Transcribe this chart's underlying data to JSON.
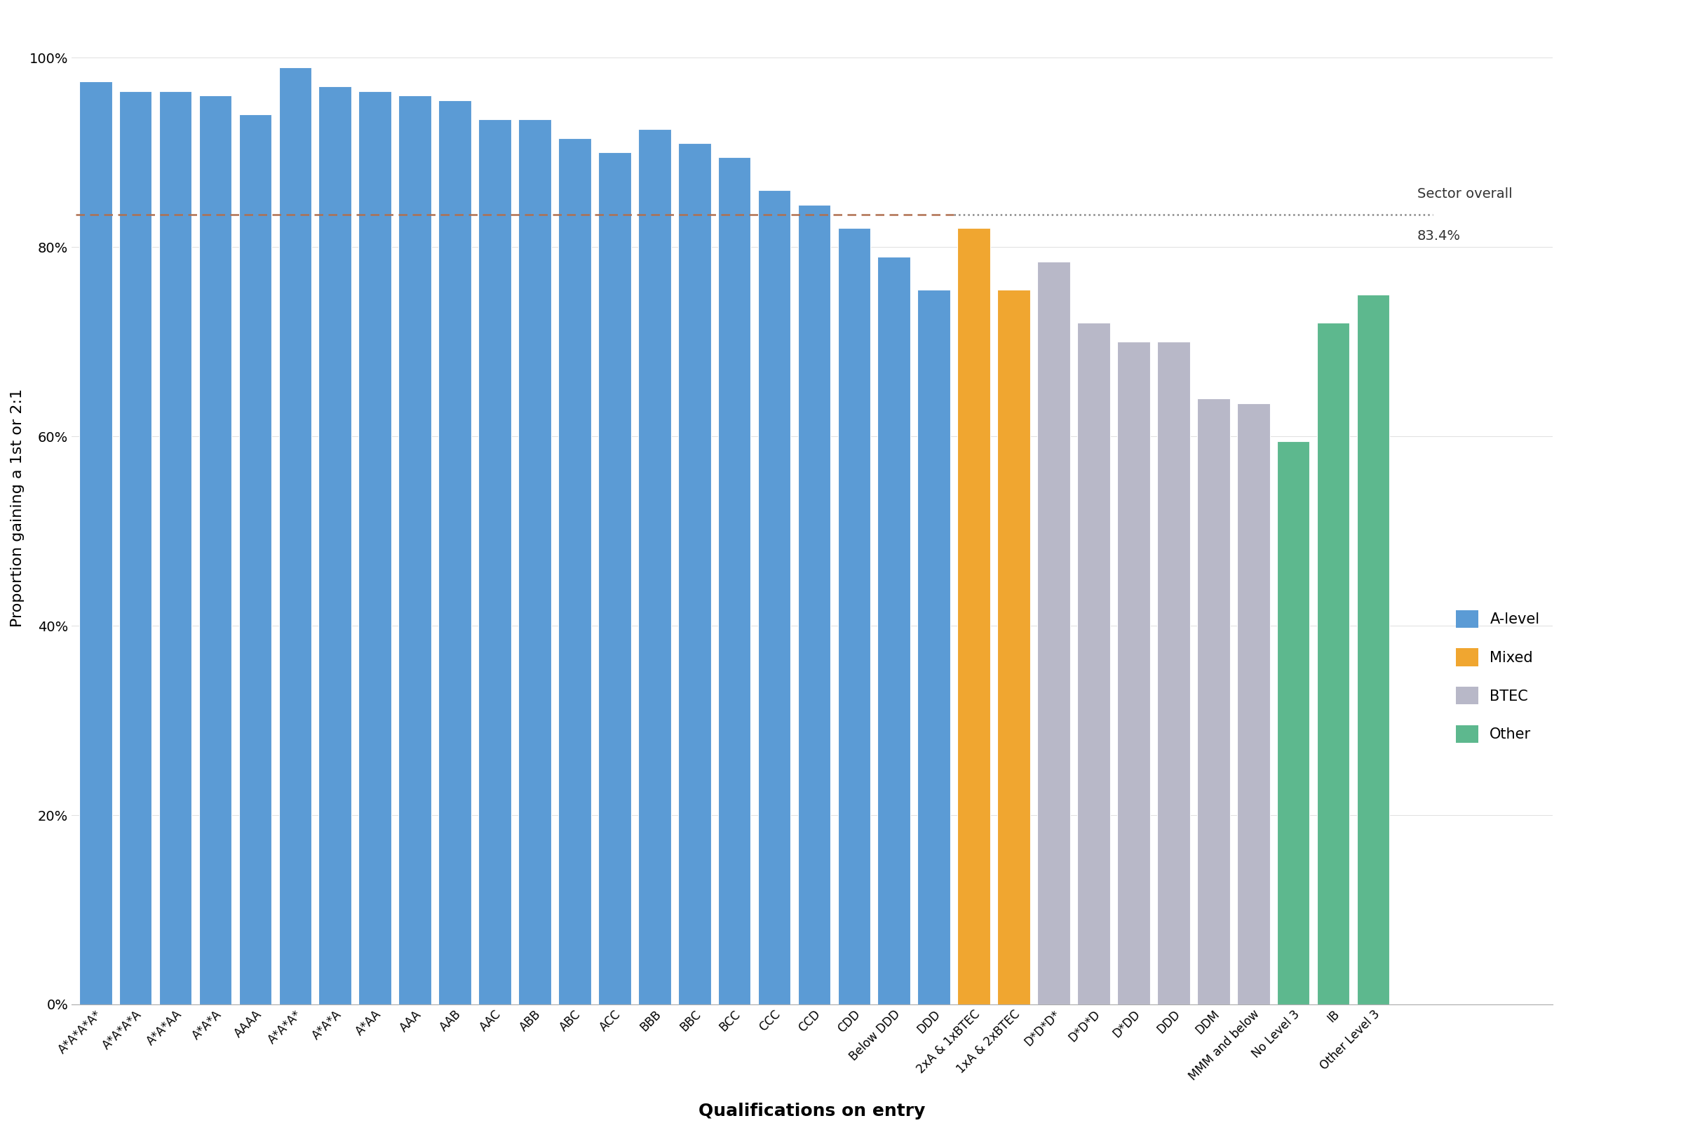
{
  "categories": [
    "A*A*A*A*",
    "A*A*A*A",
    "A*A*AA",
    "A*A*A",
    "AAAA",
    "A*A*A*",
    "A*A*A",
    "A*AA",
    "AAA",
    "AAB",
    "AAC",
    "ABB",
    "ABC",
    "ACC",
    "BBB",
    "BBC",
    "BCC",
    "CCC",
    "CCD",
    "CDD",
    "Below DDD",
    "DDD",
    "2xA & 1xBTEC",
    "1xA & 2xBTEC",
    "D*D*D*",
    "D*D*D",
    "D*DD",
    "DDD",
    "DDM",
    "MMM and below",
    "No Level 3",
    "IB",
    "Other Level 3"
  ],
  "values": [
    97.5,
    96.5,
    96.5,
    96.0,
    94.0,
    99.0,
    97.0,
    96.5,
    96.0,
    95.5,
    93.5,
    93.5,
    91.5,
    90.0,
    92.5,
    91.0,
    89.5,
    86.0,
    84.5,
    82.0,
    79.0,
    75.5,
    82.0,
    75.5,
    78.5,
    72.0,
    70.0,
    70.0,
    64.0,
    63.5,
    59.5,
    72.0,
    75.0
  ],
  "colors": [
    "#5b9bd5",
    "#5b9bd5",
    "#5b9bd5",
    "#5b9bd5",
    "#5b9bd5",
    "#5b9bd5",
    "#5b9bd5",
    "#5b9bd5",
    "#5b9bd5",
    "#5b9bd5",
    "#5b9bd5",
    "#5b9bd5",
    "#5b9bd5",
    "#5b9bd5",
    "#5b9bd5",
    "#5b9bd5",
    "#5b9bd5",
    "#5b9bd5",
    "#5b9bd5",
    "#5b9bd5",
    "#5b9bd5",
    "#5b9bd5",
    "#f0a630",
    "#f0a630",
    "#b8b8c8",
    "#b8b8c8",
    "#b8b8c8",
    "#b8b8c8",
    "#b8b8c8",
    "#b8b8c8",
    "#5db88e",
    "#5db88e",
    "#5db88e"
  ],
  "sector_overall": 83.4,
  "ylabel": "Proportion gaining a 1st or 2:1",
  "xlabel": "Qualifications on entry",
  "legend_labels": [
    "A-level",
    "Mixed",
    "BTEC",
    "Other"
  ],
  "legend_colors": [
    "#5b9bd5",
    "#f0a630",
    "#b8b8c8",
    "#5db88e"
  ],
  "dashed_line_color_left": "#b07050",
  "dashed_line_color_right": "#888888",
  "background_color": "#ffffff",
  "ylim_max": 105,
  "axis_fontsize": 14,
  "label_fontsize": 16,
  "tick_fontsize": 12,
  "legend_fontsize": 15
}
